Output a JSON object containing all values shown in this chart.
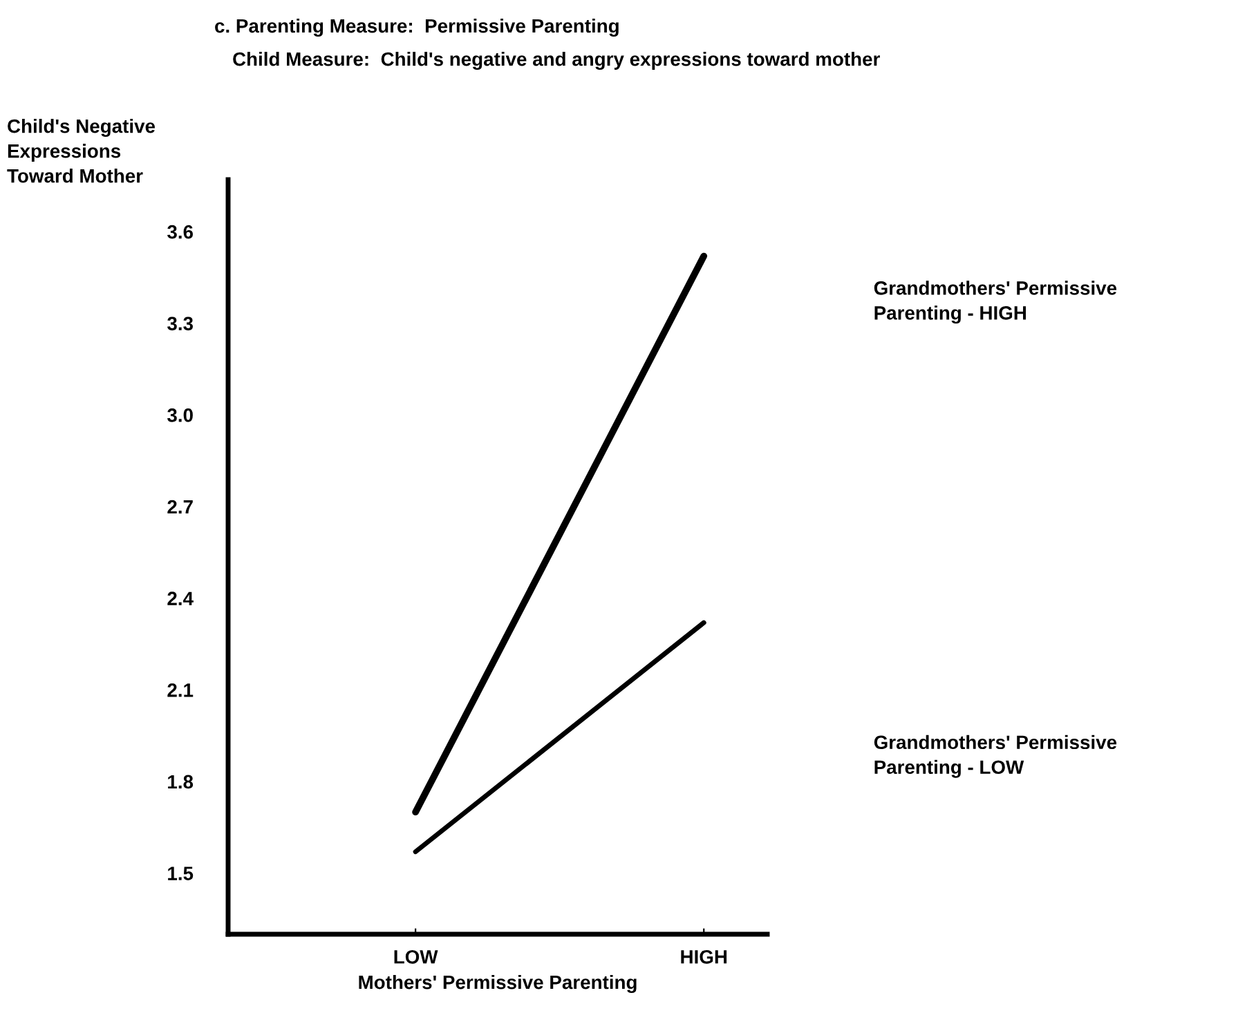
{
  "chart_data": {
    "type": "line",
    "title": "c. Parenting Measure:  Permissive Parenting",
    "subtitle": "Child Measure:  Child's negative and angry expressions toward mother",
    "xlabel": "Mothers' Permissive Parenting",
    "ylabel": "Child's Negative\nExpressions\nToward Mother",
    "categories": [
      "LOW",
      "HIGH"
    ],
    "series": [
      {
        "name": "Grandmothers' Permissive\nParenting - HIGH",
        "color": "#000000",
        "values": [
          1.7,
          3.52
        ]
      },
      {
        "name": "Grandmothers' Permissive\nParenting - LOW",
        "color": "#000000",
        "values": [
          1.57,
          2.32
        ]
      }
    ],
    "ylim": [
      1.3,
      3.77
    ],
    "yticks": [
      {
        "value": 3.6,
        "label": "3.6"
      },
      {
        "value": 3.3,
        "label": "3.3"
      },
      {
        "value": 3.0,
        "label": "3.0"
      },
      {
        "value": 2.7,
        "label": "2.7"
      },
      {
        "value": 2.4,
        "label": "2.4"
      },
      {
        "value": 2.1,
        "label": "2.1"
      },
      {
        "value": 1.8,
        "label": "1.8"
      },
      {
        "value": 1.5,
        "label": "1.5"
      }
    ],
    "grid": false,
    "legend": false,
    "marker": "none",
    "line_style": "solid"
  }
}
